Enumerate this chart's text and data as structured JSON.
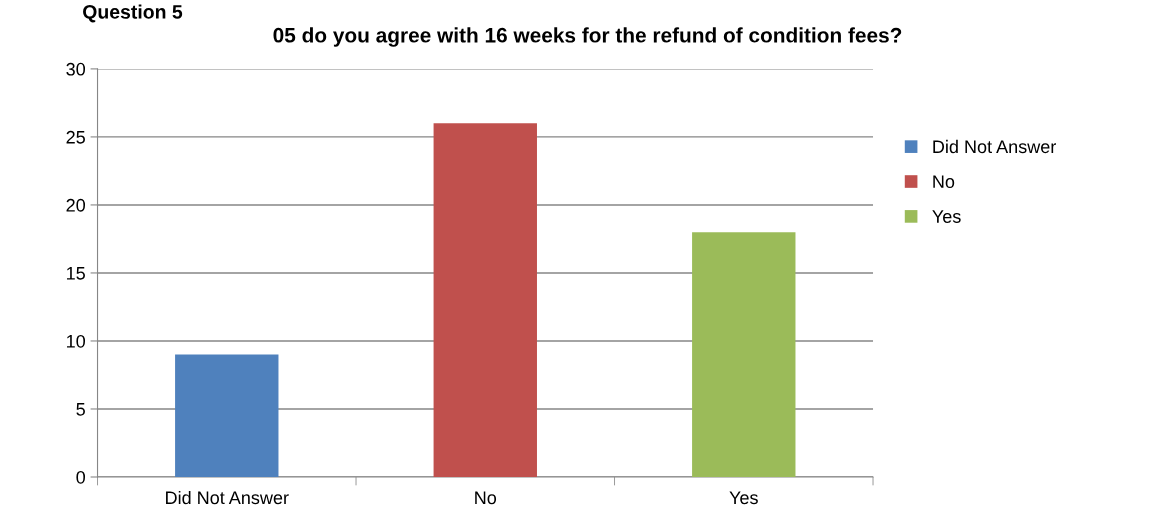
{
  "chart_data": {
    "type": "bar",
    "title": "05 do you agree with 16 weeks for the refund of condition fees?",
    "annotations": [
      "Question 5"
    ],
    "categories": [
      "Did Not Answer",
      "No",
      "Yes"
    ],
    "series": [
      {
        "name": "Did Not Answer",
        "color": "#4f81bd",
        "values": [
          9,
          null,
          null
        ]
      },
      {
        "name": "No",
        "color": "#c0504d",
        "values": [
          null,
          26,
          null
        ]
      },
      {
        "name": "Yes",
        "color": "#9bbb59",
        "values": [
          null,
          null,
          18
        ]
      }
    ],
    "ylim": [
      0,
      30
    ],
    "yticks": [
      0,
      5,
      10,
      15,
      20,
      25,
      30
    ],
    "grid": "y",
    "legend": "right"
  }
}
